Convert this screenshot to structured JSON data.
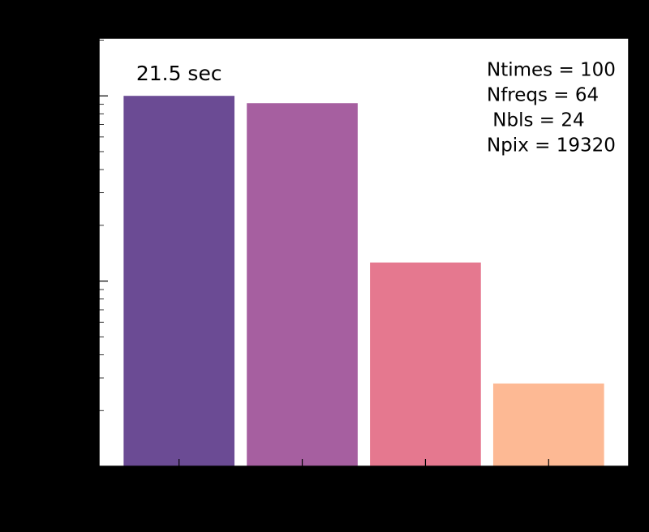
{
  "chart_data": {
    "type": "bar",
    "log_y": true,
    "categories": [
      null,
      null,
      null,
      null
    ],
    "values": [
      1,
      0.913,
      0.126,
      0.028
    ],
    "colors": [
      "#6b4b94",
      "#a65fa0",
      "#e5788f",
      "#fdb994"
    ],
    "ylim": [
      0.01,
      2.05
    ],
    "yticks": [
      0.1,
      1
    ],
    "bar_label": "21.5 sec",
    "annotations": [
      "Ntimes = 100",
      "Nfreqs = 64",
      " Nbls = 24",
      "Npix = 19320"
    ]
  }
}
